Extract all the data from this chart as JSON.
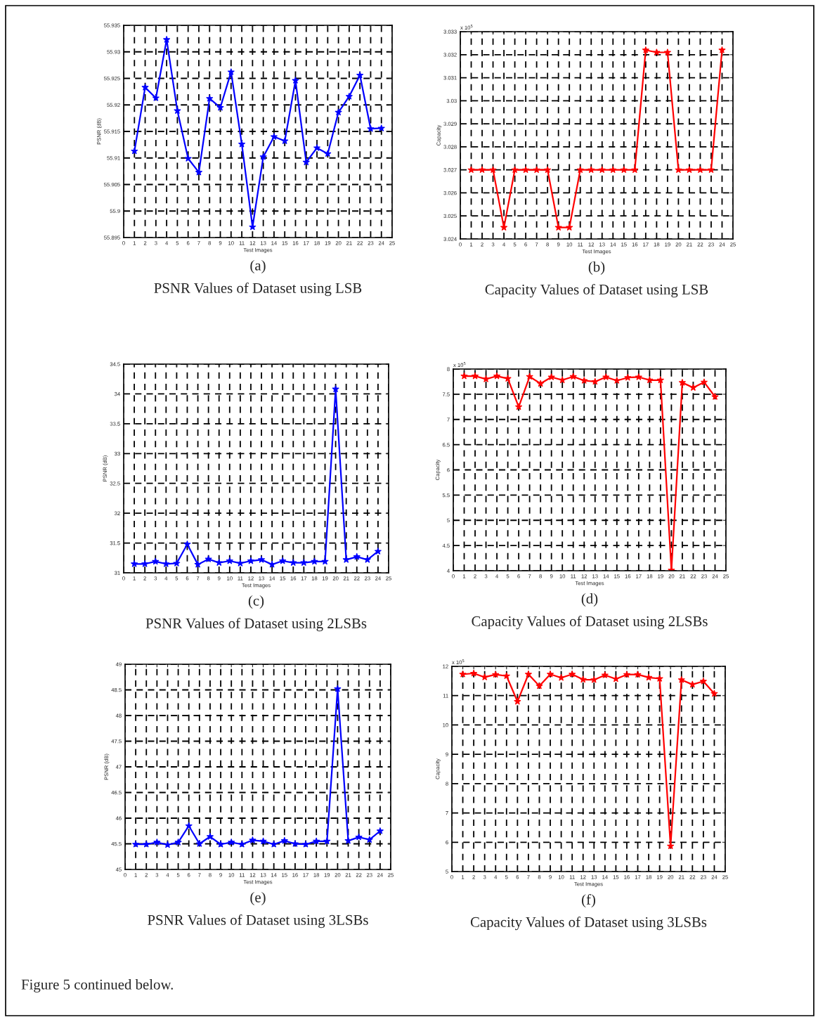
{
  "chart_data": [
    {
      "type": "line",
      "title": "(a)",
      "subtitle": "PSNR Values of Dataset using LSB",
      "xlabel": "Test Images",
      "ylabel": "PSNR (dB)",
      "x": [
        1,
        2,
        3,
        4,
        5,
        6,
        7,
        8,
        9,
        10,
        11,
        12,
        13,
        14,
        15,
        16,
        17,
        18,
        19,
        20,
        21,
        22,
        23,
        24
      ],
      "series": [
        {
          "color": "#0000ff",
          "values": [
            55.9113,
            55.9233,
            55.9213,
            55.9323,
            55.9189,
            55.9099,
            55.9073,
            55.9212,
            55.9195,
            55.9262,
            55.9126,
            55.897,
            55.9102,
            55.914,
            55.9132,
            55.9246,
            55.9092,
            55.9119,
            55.9108,
            55.9186,
            55.9216,
            55.9256,
            55.9155,
            55.9156
          ]
        }
      ],
      "xlim": [
        0,
        25
      ],
      "xticks": [
        0,
        1,
        2,
        3,
        4,
        5,
        6,
        7,
        8,
        9,
        10,
        11,
        12,
        13,
        14,
        15,
        16,
        17,
        18,
        19,
        20,
        21,
        22,
        23,
        24,
        25
      ],
      "ylim": [
        55.895,
        55.935
      ],
      "yticks": [
        55.895,
        55.9,
        55.905,
        55.91,
        55.915,
        55.92,
        55.925,
        55.93,
        55.935
      ],
      "grid": true,
      "marker": "star",
      "line_style": "solid"
    },
    {
      "type": "line",
      "title": "(b)",
      "subtitle": "Capacity Values of Dataset using LSB",
      "xlabel": "Test Images",
      "ylabel": "Capacity",
      "annotations": [
        "x 10$^{5}$"
      ],
      "x": [
        1,
        2,
        3,
        4,
        5,
        6,
        7,
        8,
        9,
        10,
        11,
        12,
        13,
        14,
        15,
        16,
        17,
        18,
        19,
        20,
        21,
        22,
        23,
        24
      ],
      "series": [
        {
          "color": "#ff0000",
          "values": [
            3.027,
            3.027,
            3.027,
            3.0245,
            3.027,
            3.027,
            3.027,
            3.027,
            3.0245,
            3.0245,
            3.027,
            3.027,
            3.027,
            3.027,
            3.027,
            3.027,
            3.0322,
            3.0321,
            3.0321,
            3.027,
            3.027,
            3.027,
            3.027,
            3.0322
          ]
        }
      ],
      "xlim": [
        0,
        25
      ],
      "xticks": [
        0,
        1,
        2,
        3,
        4,
        5,
        6,
        7,
        8,
        9,
        10,
        11,
        12,
        13,
        14,
        15,
        16,
        17,
        18,
        19,
        20,
        21,
        22,
        23,
        24,
        25
      ],
      "ylim": [
        3.024,
        3.033
      ],
      "yticks": [
        3.024,
        3.025,
        3.026,
        3.027,
        3.028,
        3.029,
        3.03,
        3.031,
        3.032,
        3.033
      ],
      "grid": true,
      "marker": "star",
      "line_style": "solid"
    },
    {
      "type": "line",
      "title": "(c)",
      "subtitle": "PSNR Values of Dataset using 2LSBs",
      "xlabel": "Test Images",
      "ylabel": "PSNR (dB)",
      "x": [
        1,
        2,
        3,
        4,
        5,
        6,
        7,
        8,
        9,
        10,
        11,
        12,
        13,
        14,
        15,
        16,
        17,
        18,
        19,
        20,
        21,
        22,
        23,
        24
      ],
      "series": [
        {
          "color": "#0000ff",
          "values": [
            31.15,
            31.15,
            31.19,
            31.15,
            31.16,
            31.48,
            31.14,
            31.23,
            31.17,
            31.2,
            31.16,
            31.2,
            31.22,
            31.14,
            31.2,
            31.17,
            31.17,
            31.19,
            31.19,
            34.08,
            31.22,
            31.27,
            31.22,
            31.36
          ]
        }
      ],
      "xlim": [
        0,
        25
      ],
      "xticks": [
        0,
        1,
        2,
        3,
        4,
        5,
        6,
        7,
        8,
        9,
        10,
        11,
        12,
        13,
        14,
        15,
        16,
        17,
        18,
        19,
        20,
        21,
        22,
        23,
        24,
        25
      ],
      "ylim": [
        31,
        34.5
      ],
      "yticks": [
        31,
        31.5,
        32,
        32.5,
        33,
        33.5,
        34,
        34.5
      ],
      "grid": true,
      "marker": "star",
      "line_style": "solid"
    },
    {
      "type": "line",
      "title": "(d)",
      "subtitle": "Capacity Values of Dataset using 2LSBs",
      "xlabel": "Test Images",
      "ylabel": "Capacity",
      "annotations": [
        "x 10$^{5}$"
      ],
      "x": [
        1,
        2,
        3,
        4,
        5,
        6,
        7,
        8,
        9,
        10,
        11,
        12,
        13,
        14,
        15,
        16,
        17,
        18,
        19,
        20,
        21,
        22,
        23,
        24
      ],
      "series": [
        {
          "color": "#ff0000",
          "values": [
            7.86,
            7.86,
            7.8,
            7.86,
            7.81,
            7.25,
            7.85,
            7.71,
            7.84,
            7.78,
            7.85,
            7.77,
            7.75,
            7.84,
            7.77,
            7.83,
            7.84,
            7.78,
            7.78,
            4.01,
            7.73,
            7.63,
            7.74,
            7.45
          ]
        }
      ],
      "xlim": [
        0,
        25
      ],
      "xticks": [
        0,
        1,
        2,
        3,
        4,
        5,
        6,
        7,
        8,
        9,
        10,
        11,
        12,
        13,
        14,
        15,
        16,
        17,
        18,
        19,
        20,
        21,
        22,
        23,
        24,
        25
      ],
      "ylim": [
        4,
        8
      ],
      "yticks": [
        4,
        4.5,
        5,
        5.5,
        6,
        6.5,
        7,
        7.5,
        8
      ],
      "grid": true,
      "marker": "star",
      "line_style": "solid"
    },
    {
      "type": "line",
      "title": "(e)",
      "subtitle": "PSNR Values of Dataset using 3LSBs",
      "xlabel": "Test Images",
      "ylabel": "PSNR (dB)",
      "x": [
        1,
        2,
        3,
        4,
        5,
        6,
        7,
        8,
        9,
        10,
        11,
        12,
        13,
        14,
        15,
        16,
        17,
        18,
        19,
        20,
        21,
        22,
        23,
        24
      ],
      "series": [
        {
          "color": "#0000ff",
          "values": [
            45.49,
            45.49,
            45.53,
            45.48,
            45.53,
            45.85,
            45.5,
            45.64,
            45.49,
            45.53,
            45.49,
            45.57,
            45.55,
            45.49,
            45.56,
            45.5,
            45.49,
            45.55,
            45.55,
            48.52,
            45.56,
            45.63,
            45.58,
            45.75
          ]
        }
      ],
      "xlim": [
        0,
        25
      ],
      "xticks": [
        0,
        1,
        2,
        3,
        4,
        5,
        6,
        7,
        8,
        9,
        10,
        11,
        12,
        13,
        14,
        15,
        16,
        17,
        18,
        19,
        20,
        21,
        22,
        23,
        24,
        25
      ],
      "ylim": [
        45,
        49
      ],
      "yticks": [
        45,
        45.5,
        46,
        46.5,
        47,
        47.5,
        48,
        48.5,
        49
      ],
      "grid": true,
      "marker": "star",
      "line_style": "solid"
    },
    {
      "type": "line",
      "title": "(f)",
      "subtitle": "Capacity Values of Dataset using 3LSBs",
      "xlabel": "Test Images",
      "ylabel": "Capacity",
      "annotations": [
        "x 10$^{5}$",
        "Figure 5 continued below."
      ],
      "x": [
        1,
        2,
        3,
        4,
        5,
        6,
        7,
        8,
        9,
        10,
        11,
        12,
        13,
        14,
        15,
        16,
        17,
        18,
        19,
        20,
        21,
        22,
        23,
        24
      ],
      "series": [
        {
          "color": "#ff0000",
          "values": [
            11.73,
            11.76,
            11.63,
            11.72,
            11.67,
            10.8,
            11.73,
            11.33,
            11.73,
            11.61,
            11.73,
            11.55,
            11.54,
            11.7,
            11.57,
            11.72,
            11.72,
            11.62,
            11.58,
            5.87,
            11.54,
            11.38,
            11.49,
            11.07
          ]
        }
      ],
      "xlim": [
        0,
        25
      ],
      "xticks": [
        0,
        1,
        2,
        3,
        4,
        5,
        6,
        7,
        8,
        9,
        10,
        11,
        12,
        13,
        14,
        15,
        16,
        17,
        18,
        19,
        20,
        21,
        22,
        23,
        24,
        25
      ],
      "ylim": [
        5,
        12
      ],
      "yticks": [
        5,
        6,
        7,
        8,
        9,
        10,
        11,
        12
      ],
      "grid": true,
      "marker": "star",
      "line_style": "solid"
    }
  ]
}
